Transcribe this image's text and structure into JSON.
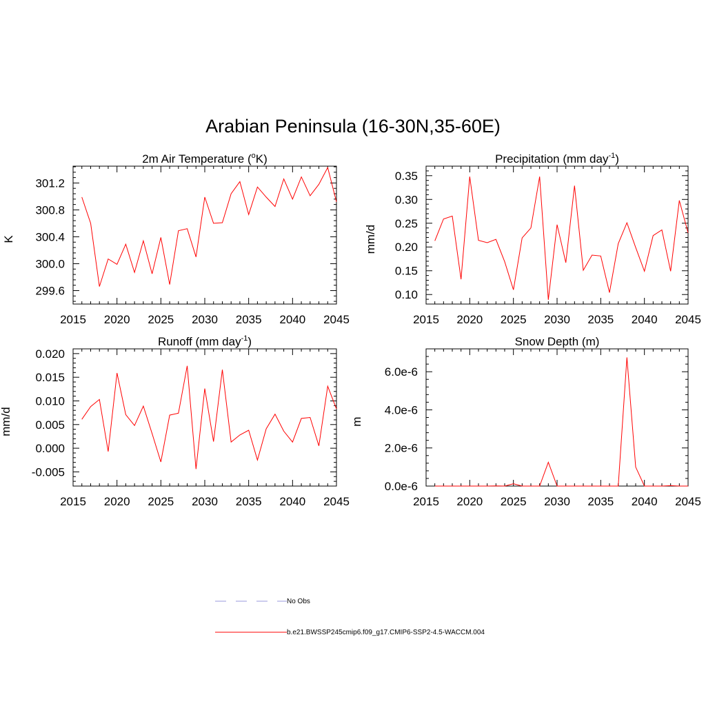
{
  "title": "Arabian Peninsula (16-30N,35-60E)",
  "line_color": "#ff0000",
  "obs_color": "#9999dd",
  "chart_data": [
    {
      "type": "line",
      "title_main": "2m Air Temperature (",
      "title_sup1": "o",
      "title_rest": "K)",
      "ylabel": "K",
      "xlim": [
        2015,
        2045
      ],
      "ylim": [
        299.4,
        301.45
      ],
      "xticks": [
        2015,
        2020,
        2025,
        2030,
        2035,
        2040,
        2045
      ],
      "yticks": [
        299.6,
        300.0,
        300.4,
        300.8,
        301.2
      ],
      "ytick_labels": [
        "299.6",
        "300.0",
        "300.4",
        "300.8",
        "301.2"
      ],
      "x": [
        2016,
        2017,
        2018,
        2019,
        2020,
        2021,
        2022,
        2023,
        2024,
        2025,
        2026,
        2027,
        2028,
        2029,
        2030,
        2031,
        2032,
        2033,
        2034,
        2035,
        2036,
        2037,
        2038,
        2039,
        2040,
        2041,
        2042,
        2043,
        2044,
        2045
      ],
      "series": [
        {
          "values": [
            300.99,
            300.6,
            299.66,
            300.07,
            299.99,
            300.29,
            299.87,
            300.34,
            299.85,
            300.39,
            299.69,
            300.49,
            300.52,
            300.1,
            300.99,
            300.6,
            300.61,
            301.04,
            301.22,
            300.73,
            301.14,
            300.99,
            300.85,
            301.26,
            300.96,
            301.29,
            301.01,
            301.18,
            301.43,
            300.92
          ]
        }
      ]
    },
    {
      "type": "line",
      "title_main": "Precipitation (mm day",
      "title_sup1": "-1",
      "title_rest": ")",
      "ylabel": "mm/d",
      "xlim": [
        2015,
        2045
      ],
      "ylim": [
        0.08,
        0.37
      ],
      "xticks": [
        2015,
        2020,
        2025,
        2030,
        2035,
        2040,
        2045
      ],
      "yticks": [
        0.1,
        0.15,
        0.2,
        0.25,
        0.3,
        0.35
      ],
      "ytick_labels": [
        "0.10",
        "0.15",
        "0.20",
        "0.25",
        "0.30",
        "0.35"
      ],
      "x": [
        2016,
        2017,
        2018,
        2019,
        2020,
        2021,
        2022,
        2023,
        2024,
        2025,
        2026,
        2027,
        2028,
        2029,
        2030,
        2031,
        2032,
        2033,
        2034,
        2035,
        2036,
        2037,
        2038,
        2039,
        2040,
        2041,
        2042,
        2043,
        2044,
        2045
      ],
      "series": [
        {
          "values": [
            0.213,
            0.259,
            0.265,
            0.132,
            0.348,
            0.214,
            0.209,
            0.216,
            0.169,
            0.11,
            0.219,
            0.24,
            0.348,
            0.089,
            0.247,
            0.167,
            0.329,
            0.151,
            0.183,
            0.181,
            0.104,
            0.207,
            0.251,
            0.199,
            0.149,
            0.224,
            0.236,
            0.149,
            0.298,
            0.23
          ]
        }
      ]
    },
    {
      "type": "line",
      "title_main": "Runoff (mm day",
      "title_sup1": "-1",
      "title_rest": ")",
      "ylabel": "mm/d",
      "xlim": [
        2015,
        2045
      ],
      "ylim": [
        -0.008,
        0.021
      ],
      "xticks": [
        2015,
        2020,
        2025,
        2030,
        2035,
        2040,
        2045
      ],
      "yticks": [
        -0.005,
        0.0,
        0.005,
        0.01,
        0.015,
        0.02
      ],
      "ytick_labels": [
        "-0.005",
        "0.000",
        "0.005",
        "0.010",
        "0.015",
        "0.020"
      ],
      "x": [
        2016,
        2017,
        2018,
        2019,
        2020,
        2021,
        2022,
        2023,
        2024,
        2025,
        2026,
        2027,
        2028,
        2029,
        2030,
        2031,
        2032,
        2033,
        2034,
        2035,
        2036,
        2037,
        2038,
        2039,
        2040,
        2041,
        2042,
        2043,
        2044,
        2045
      ],
      "series": [
        {
          "values": [
            0.0061,
            0.0088,
            0.0103,
            -0.0007,
            0.0159,
            0.0071,
            0.0048,
            0.0089,
            0.0031,
            -0.0029,
            0.007,
            0.0074,
            0.0174,
            -0.0044,
            0.0126,
            0.0014,
            0.0166,
            0.0013,
            0.0028,
            0.0038,
            -0.0025,
            0.0041,
            0.0072,
            0.0036,
            0.0013,
            0.0063,
            0.0065,
            0.0005,
            0.0131,
            0.0083
          ]
        }
      ]
    },
    {
      "type": "line",
      "title_main": "Snow Depth (m)",
      "title_sup1": "",
      "title_rest": "",
      "ylabel": "m",
      "xlim": [
        2015,
        2045
      ],
      "ylim": [
        0,
        7.2e-06
      ],
      "xticks": [
        2015,
        2020,
        2025,
        2030,
        2035,
        2040,
        2045
      ],
      "yticks": [
        0,
        2e-06,
        4e-06,
        6e-06
      ],
      "ytick_labels": [
        "0.0e-6",
        "2.0e-6",
        "4.0e-6",
        "6.0e-6"
      ],
      "x": [
        2016,
        2017,
        2018,
        2019,
        2020,
        2021,
        2022,
        2023,
        2024,
        2025,
        2026,
        2027,
        2028,
        2029,
        2030,
        2031,
        2032,
        2033,
        2034,
        2035,
        2036,
        2037,
        2038,
        2039,
        2040,
        2041,
        2042,
        2043,
        2044,
        2045
      ],
      "series": [
        {
          "values": [
            0,
            0,
            0,
            0,
            0,
            0,
            0,
            1e-08,
            0,
            1.2e-07,
            0,
            0,
            0,
            1.25e-06,
            0,
            0,
            0,
            0,
            0,
            0,
            0,
            0,
            6.75e-06,
            1e-06,
            0,
            0,
            0,
            2e-08,
            0,
            0
          ]
        }
      ]
    }
  ],
  "legend": {
    "obs_label": "No Obs",
    "model_label": "b.e21.BWSSP245cmip6.f09_g17.CMIP6-SSP2-4.5-WACCM.004"
  }
}
